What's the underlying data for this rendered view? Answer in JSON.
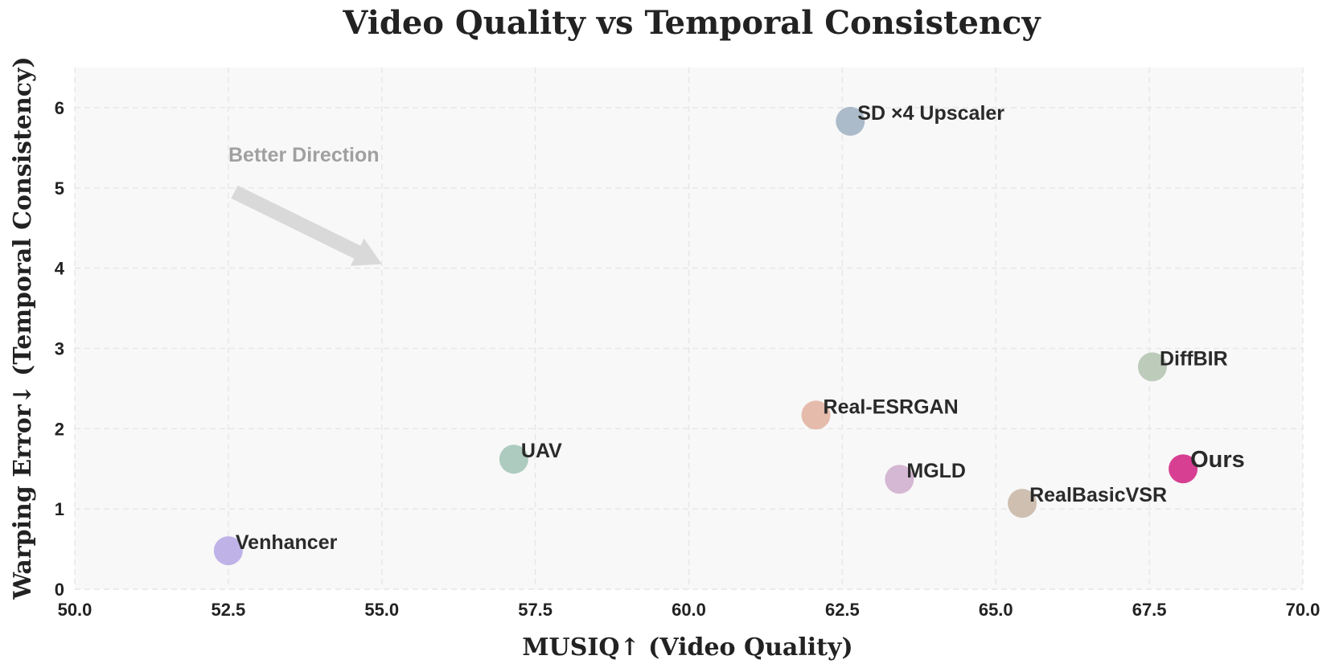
{
  "chart_data": {
    "type": "scatter",
    "title": "Video Quality vs Temporal Consistency",
    "xlabel": "MUSIQ↑ (Video Quality)",
    "ylabel": "Warping Error↓ (Temporal Consistency)",
    "xlim": [
      50,
      70
    ],
    "ylim": [
      0,
      6.5
    ],
    "xticks": [
      "50.0",
      "52.5",
      "55.0",
      "57.5",
      "60.0",
      "62.5",
      "65.0",
      "67.5",
      "70.0"
    ],
    "yticks": [
      "0",
      "1",
      "2",
      "3",
      "4",
      "5",
      "6"
    ],
    "grid": true,
    "plot_background": "#f8f8f8",
    "annotation": {
      "text": "Better Direction",
      "arrow_from": [
        52.6,
        4.95
      ],
      "arrow_to": [
        55.0,
        4.05
      ],
      "color": "#d9d9d9"
    },
    "points": [
      {
        "label": "SD ×4 Upscaler",
        "x": 62.63,
        "y": 5.83,
        "color": "#a8b7c6"
      },
      {
        "label": "DiffBIR",
        "x": 67.55,
        "y": 2.77,
        "color": "#b9c8b6"
      },
      {
        "label": "Real-ESRGAN",
        "x": 62.07,
        "y": 2.17,
        "color": "#e4b7a8"
      },
      {
        "label": "UAV",
        "x": 57.15,
        "y": 1.62,
        "color": "#a9c8bb"
      },
      {
        "label": "MGLD",
        "x": 63.43,
        "y": 1.37,
        "color": "#d3b4d2"
      },
      {
        "label": "Ours",
        "x": 68.05,
        "y": 1.5,
        "color": "#d63f92",
        "highlight": true
      },
      {
        "label": "RealBasicVSR",
        "x": 65.43,
        "y": 1.07,
        "color": "#cbbcad"
      },
      {
        "label": "Venhancer",
        "x": 52.5,
        "y": 0.48,
        "color": "#bcaee6"
      }
    ]
  }
}
